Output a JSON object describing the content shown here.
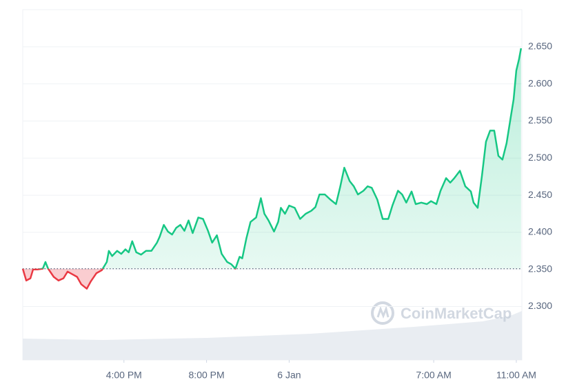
{
  "chart_data": {
    "type": "line",
    "x": [
      11.1,
      11.27,
      11.47,
      11.6,
      11.83,
      12.07,
      12.2,
      12.33,
      12.6,
      12.83,
      13.07,
      13.27,
      13.47,
      13.73,
      13.93,
      14.2,
      14.4,
      14.67,
      14.93,
      15.17,
      15.27,
      15.43,
      15.67,
      15.87,
      16.07,
      16.23,
      16.4,
      16.6,
      16.83,
      17.07,
      17.33,
      17.6,
      17.73,
      17.93,
      18.13,
      18.33,
      18.53,
      18.73,
      18.93,
      19.13,
      19.33,
      19.6,
      19.83,
      20.07,
      20.27,
      20.5,
      20.73,
      21.0,
      21.2,
      21.4,
      21.6,
      21.73,
      21.93,
      22.13,
      22.4,
      22.63,
      22.8,
      23.0,
      23.27,
      23.47,
      23.6,
      23.8,
      24.0,
      24.27,
      24.53,
      24.8,
      25.07,
      25.27,
      25.47,
      25.73,
      26.0,
      26.27,
      26.47,
      26.67,
      26.93,
      27.13,
      27.33,
      27.6,
      27.8,
      28.0,
      28.27,
      28.53,
      28.8,
      29.0,
      29.27,
      29.47,
      29.67,
      29.93,
      30.13,
      30.4,
      30.67,
      30.87,
      31.13,
      31.33,
      31.6,
      31.8,
      32.0,
      32.27,
      32.53,
      32.8,
      32.93,
      33.13,
      33.33,
      33.53,
      33.73,
      33.93,
      34.13,
      34.33,
      34.53,
      34.73,
      34.87,
      35.0,
      35.13,
      35.23
    ],
    "values": [
      2.351,
      2.335,
      2.338,
      2.35,
      2.35,
      2.351,
      2.36,
      2.351,
      2.34,
      2.335,
      2.338,
      2.347,
      2.344,
      2.34,
      2.33,
      2.324,
      2.334,
      2.345,
      2.349,
      2.36,
      2.375,
      2.368,
      2.375,
      2.371,
      2.377,
      2.373,
      2.388,
      2.373,
      2.37,
      2.375,
      2.375,
      2.386,
      2.394,
      2.41,
      2.401,
      2.397,
      2.406,
      2.41,
      2.402,
      2.416,
      2.399,
      2.42,
      2.418,
      2.402,
      2.386,
      2.396,
      2.371,
      2.36,
      2.357,
      2.351,
      2.367,
      2.365,
      2.392,
      2.414,
      2.42,
      2.446,
      2.425,
      2.416,
      2.401,
      2.414,
      2.433,
      2.425,
      2.436,
      2.433,
      2.418,
      2.425,
      2.429,
      2.434,
      2.451,
      2.451,
      2.444,
      2.438,
      2.461,
      2.487,
      2.469,
      2.462,
      2.451,
      2.456,
      2.462,
      2.46,
      2.444,
      2.418,
      2.418,
      2.436,
      2.456,
      2.451,
      2.44,
      2.455,
      2.438,
      2.44,
      2.438,
      2.442,
      2.438,
      2.456,
      2.473,
      2.467,
      2.473,
      2.483,
      2.462,
      2.455,
      2.44,
      2.433,
      2.475,
      2.522,
      2.537,
      2.537,
      2.503,
      2.498,
      2.52,
      2.555,
      2.579,
      2.618,
      2.633,
      2.648
    ],
    "baseline": 2.351,
    "up_color": "#16c784",
    "down_color": "#ea3943",
    "xlim": [
      11.1,
      35.27
    ],
    "xticks": [
      {
        "value": 16,
        "label": "4:00 PM"
      },
      {
        "value": 20,
        "label": "8:00 PM"
      },
      {
        "value": 24,
        "label": "6 Jan"
      },
      {
        "value": 31,
        "label": "7:00 AM"
      },
      {
        "value": 35,
        "label": "11:00 AM"
      }
    ],
    "ylim": [
      2.228,
      2.7
    ],
    "yticks": [
      {
        "value": 2.3,
        "label": "2.300"
      },
      {
        "value": 2.35,
        "label": "2.350"
      },
      {
        "value": 2.4,
        "label": "2.400"
      },
      {
        "value": 2.45,
        "label": "2.450"
      },
      {
        "value": 2.5,
        "label": "2.500"
      },
      {
        "value": 2.55,
        "label": "2.550"
      },
      {
        "value": 2.6,
        "label": "2.600"
      },
      {
        "value": 2.65,
        "label": "2.650"
      }
    ],
    "grid": true,
    "watermark": "CoinMarketCap"
  }
}
